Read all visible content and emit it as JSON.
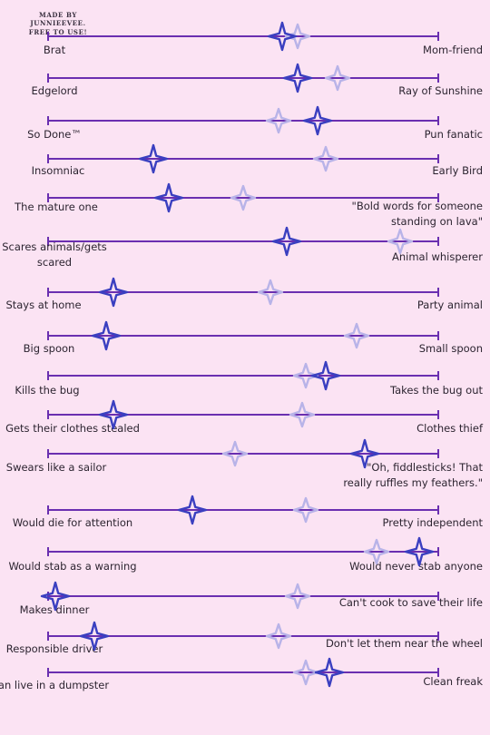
{
  "credit": [
    "MADE BY JUNNIEEVEE.",
    "FREE TO USE!"
  ],
  "colors": {
    "background": "#fbe3f3",
    "track": "#6a2fb0",
    "primary_star": "#3a3fc0",
    "secondary_star": "#b8b3e8"
  },
  "rows": [
    {
      "left": [
        "Brat"
      ],
      "right": [
        "Mom-friend"
      ],
      "primary": 0.6,
      "secondary": 0.64
    },
    {
      "left": [
        "Edgelord"
      ],
      "right": [
        "Ray of Sunshine"
      ],
      "primary": 0.64,
      "secondary": 0.74
    },
    {
      "left": [
        "So Done™"
      ],
      "right": [
        "Pun fanatic"
      ],
      "primary": 0.69,
      "secondary": 0.59
    },
    {
      "left": [
        "Insomniac"
      ],
      "right": [
        "Early Bird"
      ],
      "primary": 0.27,
      "secondary": 0.71
    },
    {
      "left": [
        "The mature one"
      ],
      "right": [
        "\"Bold words for someone",
        "standing on lava\""
      ],
      "primary": 0.31,
      "secondary": 0.5
    },
    {
      "left": [
        "Scares animals/gets",
        "scared"
      ],
      "right": [
        "Animal whisperer"
      ],
      "primary": 0.61,
      "secondary": 0.9
    },
    {
      "left": [
        "Stays at home"
      ],
      "right": [
        "Party animal"
      ],
      "primary": 0.17,
      "secondary": 0.57
    },
    {
      "left": [
        "Big spoon"
      ],
      "right": [
        "Small spoon"
      ],
      "primary": 0.15,
      "secondary": 0.79
    },
    {
      "left": [
        "Kills the bug"
      ],
      "right": [
        "Takes the bug out"
      ],
      "primary": 0.71,
      "secondary": 0.66
    },
    {
      "left": [
        "Gets their clothes stealed"
      ],
      "right": [
        "Clothes thief"
      ],
      "primary": 0.17,
      "secondary": 0.65
    },
    {
      "left": [
        "Swears like a sailor"
      ],
      "right": [
        "\"Oh, fiddlesticks! That",
        "really ruffles my feathers.\""
      ],
      "primary": 0.81,
      "secondary": 0.48
    },
    {
      "left": [
        "Would die for attention"
      ],
      "right": [
        "Pretty independent"
      ],
      "primary": 0.37,
      "secondary": 0.66
    },
    {
      "left": [
        "Would stab as a warning"
      ],
      "right": [
        "Would never stab anyone"
      ],
      "primary": 0.95,
      "secondary": 0.84
    },
    {
      "left": [
        "Makes dinner"
      ],
      "right": [
        "Can't cook to save their life"
      ],
      "primary": 0.02,
      "secondary": 0.64
    },
    {
      "left": [
        "Responsible driver"
      ],
      "right": [
        "Don't let them near the wheel"
      ],
      "primary": 0.12,
      "secondary": 0.59
    },
    {
      "left": [
        "Can live in a dumpster"
      ],
      "right": [
        "Clean freak"
      ],
      "primary": 0.72,
      "secondary": 0.66
    }
  ]
}
